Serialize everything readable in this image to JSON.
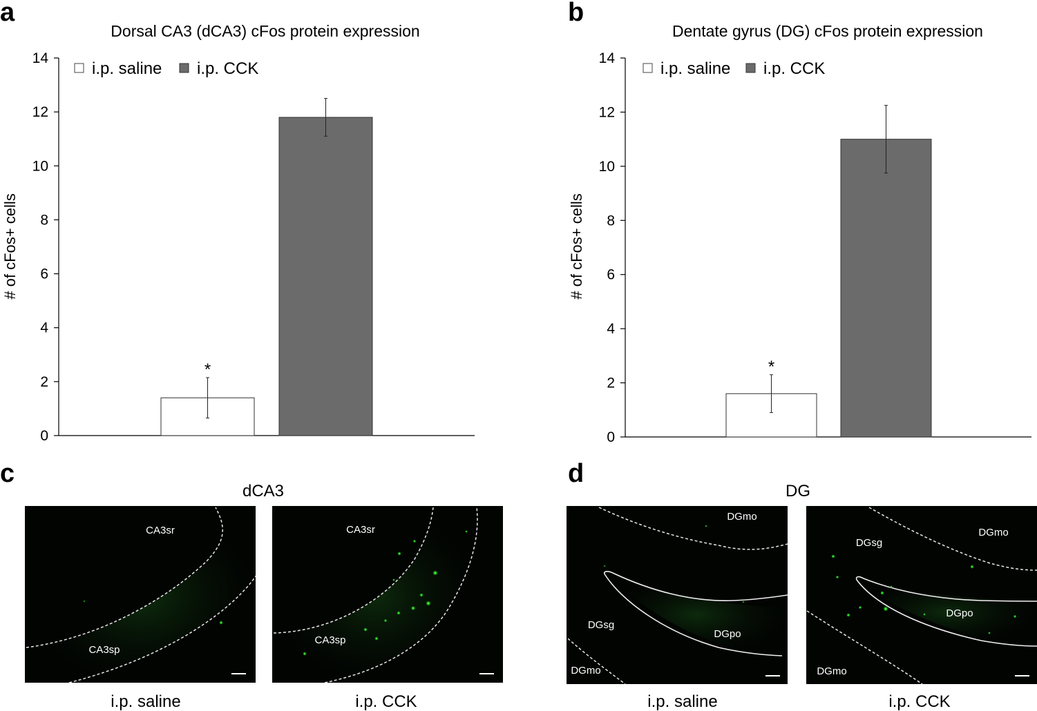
{
  "chart_data": [
    {
      "type": "bar",
      "panel": "a",
      "title": "Dorsal CA3 (dCA3) cFos protein expression",
      "ylabel": "# of cFos+ cells",
      "xlabel": "",
      "ylim": [
        0,
        14
      ],
      "yticks": [
        0,
        2,
        4,
        6,
        8,
        10,
        12,
        14
      ],
      "categories": [
        "i.p. saline",
        "i.p. CCK"
      ],
      "values": [
        1.4,
        11.8
      ],
      "errors": [
        0.75,
        0.7
      ],
      "annotations": [
        "*",
        ""
      ],
      "colors": [
        "#ffffff",
        "#6b6b6b"
      ],
      "legend": [
        "i.p. saline",
        "i.p. CCK"
      ],
      "legend_position": "top-left"
    },
    {
      "type": "bar",
      "panel": "b",
      "title": "Dentate gyrus (DG) cFos protein expression",
      "ylabel": "# of cFos+ cells",
      "xlabel": "",
      "ylim": [
        0,
        14
      ],
      "yticks": [
        0,
        2,
        4,
        6,
        8,
        10,
        12,
        14
      ],
      "categories": [
        "i.p. saline",
        "i.p. CCK"
      ],
      "values": [
        1.6,
        11.0
      ],
      "errors": [
        0.7,
        1.25
      ],
      "annotations": [
        "*",
        ""
      ],
      "colors": [
        "#ffffff",
        "#6b6b6b"
      ],
      "legend": [
        "i.p. saline",
        "i.p. CCK"
      ],
      "legend_position": "top-left"
    }
  ],
  "micrographs": {
    "c": {
      "letter": "c",
      "title": "dCA3",
      "images": [
        {
          "caption": "i.p. saline",
          "labels": [
            "CA3sr",
            "CA3sp"
          ]
        },
        {
          "caption": "i.p. CCK",
          "labels": [
            "CA3sr",
            "CA3sp"
          ]
        }
      ]
    },
    "d": {
      "letter": "d",
      "title": "DG",
      "images": [
        {
          "caption": "i.p. saline",
          "labels": [
            "DGmo",
            "DGsg",
            "DGpo",
            "DGmo"
          ]
        },
        {
          "caption": "i.p. CCK",
          "labels": [
            "DGsg",
            "DGmo",
            "DGpo",
            "DGmo"
          ]
        }
      ]
    }
  },
  "colors": {
    "saline_bar": "#ffffff",
    "cck_bar": "#6b6b6b",
    "fluorescence": "#22dd22",
    "image_bg": "#020402"
  }
}
